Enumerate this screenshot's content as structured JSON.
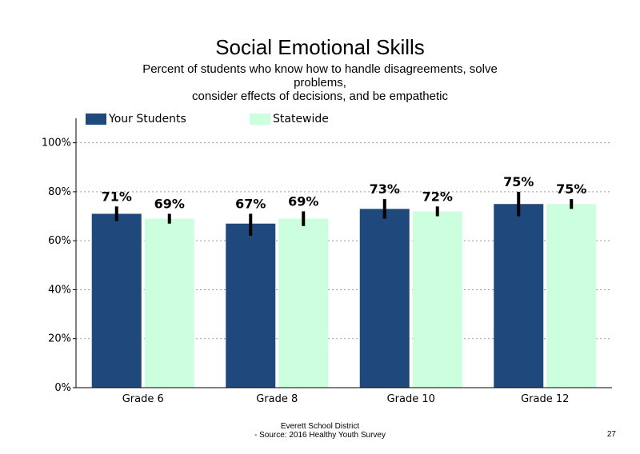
{
  "slide": {
    "title": "Social Emotional Skills",
    "subtitle_lines": [
      "Percent of students who know how to handle disagreements, solve",
      "problems,",
      "consider effects of decisions, and be empathetic"
    ],
    "footer_lines": [
      "Everett School District",
      "- Source: 2016 Healthy  Youth Survey"
    ],
    "page_number": "27"
  },
  "chart_data": {
    "type": "bar",
    "categories": [
      "Grade 6",
      "Grade 8",
      "Grade 10",
      "Grade 12"
    ],
    "series": [
      {
        "name": "Your Students",
        "color": "#1f497d",
        "values": [
          71,
          67,
          73,
          75
        ],
        "labels": [
          "71%",
          "67%",
          "73%",
          "75%"
        ],
        "error_low": [
          68,
          62,
          69,
          70
        ],
        "error_high": [
          74,
          71,
          77,
          80
        ]
      },
      {
        "name": "Statewide",
        "color": "#ccffdd",
        "values": [
          69,
          69,
          72,
          75
        ],
        "labels": [
          "69%",
          "69%",
          "72%",
          "75%"
        ],
        "error_low": [
          67,
          66,
          70,
          73
        ],
        "error_high": [
          71,
          72,
          74,
          77
        ]
      }
    ],
    "ylim": [
      0,
      110
    ],
    "yticks": [
      0,
      20,
      40,
      60,
      80,
      100
    ],
    "ytick_labels": [
      "0%",
      "20%",
      "40%",
      "60%",
      "80%",
      "100%"
    ],
    "grid": true,
    "legend": "top"
  }
}
